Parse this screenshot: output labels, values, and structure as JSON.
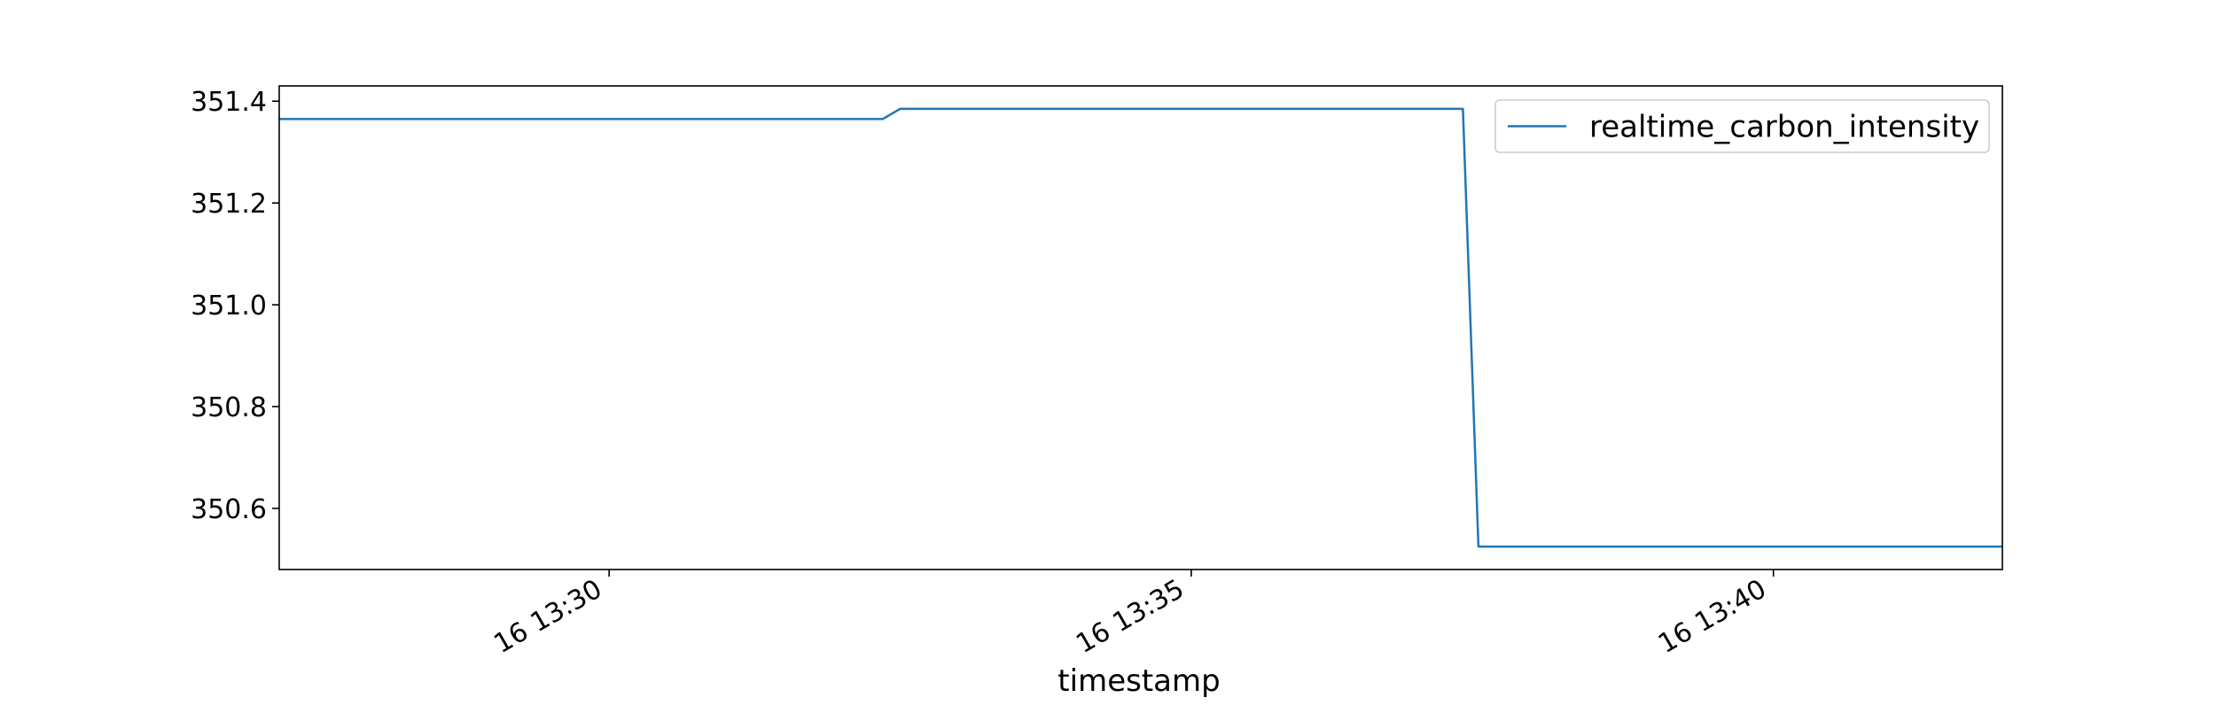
{
  "chart_data": {
    "type": "line",
    "title": "",
    "xlabel": "timestamp",
    "ylabel": "",
    "xlim": [
      "13:27:10",
      "13:41:58"
    ],
    "ylim": [
      350.48,
      351.43
    ],
    "x_ticks": [
      {
        "value": "13:30:00",
        "label": "16 13:30"
      },
      {
        "value": "13:35:00",
        "label": "16 13:35"
      },
      {
        "value": "13:40:00",
        "label": "16 13:40"
      }
    ],
    "y_ticks": [
      {
        "value": 350.6,
        "label": "350.6"
      },
      {
        "value": 350.8,
        "label": "350.8"
      },
      {
        "value": 351.0,
        "label": "351.0"
      },
      {
        "value": 351.2,
        "label": "351.2"
      },
      {
        "value": 351.4,
        "label": "351.4"
      }
    ],
    "grid": false,
    "legend": {
      "position": "top-right"
    },
    "series": [
      {
        "name": "realtime_carbon_intensity",
        "color": "#1f77b4",
        "x": [
          "13:27:10",
          "13:32:21",
          "13:32:30",
          "13:37:20",
          "13:37:28",
          "13:41:58"
        ],
        "y": [
          351.365,
          351.365,
          351.385,
          351.385,
          350.525,
          350.525
        ]
      }
    ]
  }
}
